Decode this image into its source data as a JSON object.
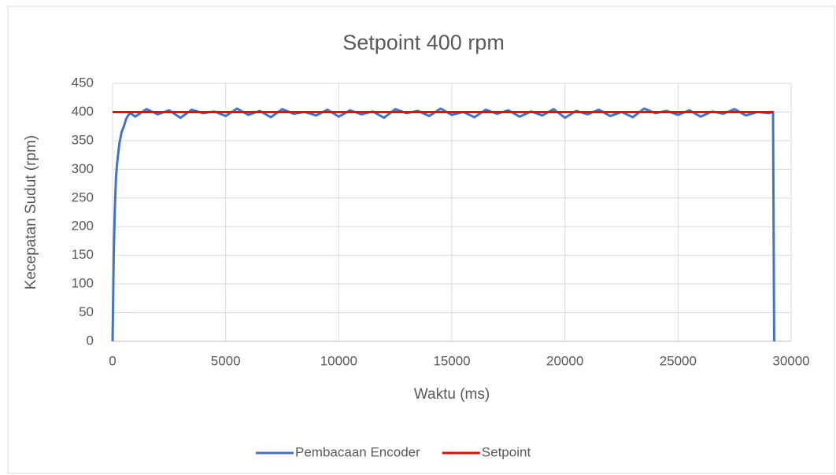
{
  "chart_data": {
    "type": "line",
    "title": "Setpoint 400 rpm",
    "xlabel": "Waktu (ms)",
    "ylabel": "Kecepatan Sudut (rpm)",
    "xlim": [
      0,
      30000
    ],
    "xticks": [
      0,
      5000,
      10000,
      15000,
      20000,
      25000,
      30000
    ],
    "ylim": [
      0,
      450
    ],
    "yticks": [
      0,
      50,
      100,
      150,
      200,
      250,
      300,
      350,
      400,
      450
    ],
    "grid": true,
    "legend": "bottom",
    "series": [
      {
        "name": "Pembacaan Encoder",
        "color": "#4472c4",
        "x": [
          0,
          50,
          100,
          150,
          200,
          300,
          400,
          500,
          600,
          700,
          800,
          1000,
          1500,
          2000,
          2500,
          3000,
          3500,
          4000,
          4500,
          5000,
          5500,
          6000,
          6500,
          7000,
          7500,
          8000,
          8500,
          9000,
          9500,
          10000,
          10500,
          11000,
          11500,
          12000,
          12500,
          13000,
          13500,
          14000,
          14500,
          15000,
          15500,
          16000,
          16500,
          17000,
          17500,
          18000,
          18500,
          19000,
          19500,
          20000,
          20500,
          21000,
          21500,
          22000,
          22500,
          23000,
          23500,
          24000,
          24500,
          25000,
          25500,
          26000,
          26500,
          27000,
          27500,
          28000,
          28500,
          29000,
          29200,
          29250
        ],
        "values": [
          0,
          150,
          230,
          285,
          310,
          345,
          365,
          375,
          388,
          395,
          398,
          392,
          405,
          396,
          403,
          390,
          404,
          398,
          401,
          393,
          406,
          395,
          402,
          391,
          405,
          397,
          400,
          394,
          404,
          392,
          403,
          396,
          401,
          390,
          405,
          398,
          402,
          393,
          406,
          395,
          400,
          391,
          404,
          397,
          403,
          392,
          401,
          394,
          405,
          390,
          402,
          396,
          404,
          393,
          400,
          391,
          406,
          398,
          402,
          395,
          403,
          392,
          401,
          397,
          405,
          394,
          400,
          398,
          400,
          0
        ]
      },
      {
        "name": "Setpoint",
        "color": "#ff0000",
        "x": [
          0,
          29200
        ],
        "values": [
          400,
          400
        ]
      }
    ]
  }
}
